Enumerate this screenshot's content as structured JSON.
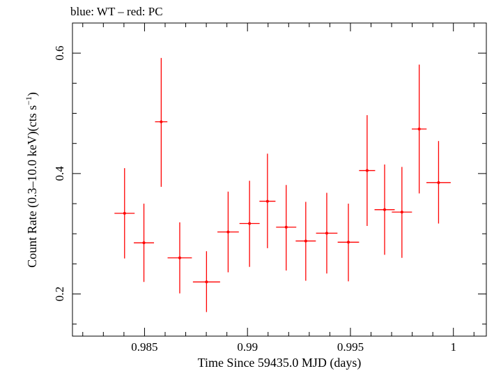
{
  "chart_data": {
    "type": "scatter",
    "title": "blue: WT – red: PC",
    "xlabel": "Time Since 59435.0 MJD (days)",
    "ylabel_main": "Count Rate (0.3–10.0 keV)(cts s",
    "ylabel_sup": "−1",
    "ylabel_tail": ")",
    "xlim": [
      0.9815,
      1.0016
    ],
    "ylim": [
      0.13,
      0.65
    ],
    "x_ticks": [
      {
        "value": 0.985,
        "label": "0.985"
      },
      {
        "value": 0.99,
        "label": "0.99"
      },
      {
        "value": 0.995,
        "label": "0.995"
      },
      {
        "value": 1.0,
        "label": "1"
      }
    ],
    "y_ticks": [
      {
        "value": 0.2,
        "label": "0.2"
      },
      {
        "value": 0.4,
        "label": "0.4"
      },
      {
        "value": 0.6,
        "label": "0.6"
      }
    ],
    "series": [
      {
        "color": "#ff0000",
        "points": [
          {
            "x": 0.98403,
            "xerr": 0.00049,
            "y": 0.334,
            "ylo": 0.259,
            "yhi": 0.409
          },
          {
            "x": 0.98497,
            "xerr": 0.00049,
            "y": 0.285,
            "ylo": 0.22,
            "yhi": 0.35
          },
          {
            "x": 0.98581,
            "xerr": 0.0003,
            "y": 0.486,
            "ylo": 0.378,
            "yhi": 0.592
          },
          {
            "x": 0.98671,
            "xerr": 0.00059,
            "y": 0.26,
            "ylo": 0.201,
            "yhi": 0.319
          },
          {
            "x": 0.98801,
            "xerr": 0.00066,
            "y": 0.22,
            "ylo": 0.17,
            "yhi": 0.271
          },
          {
            "x": 0.98906,
            "xerr": 0.00052,
            "y": 0.303,
            "ylo": 0.236,
            "yhi": 0.37
          },
          {
            "x": 0.9901,
            "xerr": 0.00049,
            "y": 0.317,
            "ylo": 0.245,
            "yhi": 0.388
          },
          {
            "x": 0.99097,
            "xerr": 0.00039,
            "y": 0.354,
            "ylo": 0.276,
            "yhi": 0.433
          },
          {
            "x": 0.99188,
            "xerr": 0.00049,
            "y": 0.311,
            "ylo": 0.239,
            "yhi": 0.381
          },
          {
            "x": 0.99283,
            "xerr": 0.00049,
            "y": 0.288,
            "ylo": 0.222,
            "yhi": 0.353
          },
          {
            "x": 0.99385,
            "xerr": 0.00052,
            "y": 0.301,
            "ylo": 0.234,
            "yhi": 0.368
          },
          {
            "x": 0.9949,
            "xerr": 0.00052,
            "y": 0.286,
            "ylo": 0.221,
            "yhi": 0.35
          },
          {
            "x": 0.99581,
            "xerr": 0.00039,
            "y": 0.405,
            "ylo": 0.313,
            "yhi": 0.497
          },
          {
            "x": 0.99666,
            "xerr": 0.00049,
            "y": 0.34,
            "ylo": 0.265,
            "yhi": 0.415
          },
          {
            "x": 0.9975,
            "xerr": 0.00049,
            "y": 0.336,
            "ylo": 0.26,
            "yhi": 0.411
          },
          {
            "x": 0.99834,
            "xerr": 0.00036,
            "y": 0.474,
            "ylo": 0.367,
            "yhi": 0.581
          },
          {
            "x": 0.99928,
            "xerr": 0.00059,
            "y": 0.385,
            "ylo": 0.317,
            "yhi": 0.454
          }
        ]
      }
    ]
  }
}
